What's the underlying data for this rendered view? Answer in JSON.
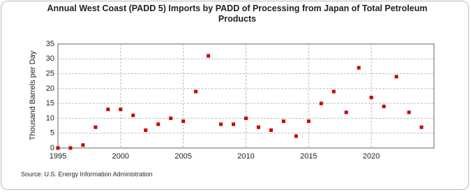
{
  "chart_data": {
    "type": "scatter",
    "title": "Annual West Coast (PADD 5) Imports by PADD of Processing from Japan of Total Petroleum Products",
    "y_label": "Thousand Barrels per Day",
    "source": "Source: U.S. Energy Information Administration",
    "x": [
      1995,
      1996,
      1997,
      1998,
      1999,
      2000,
      2001,
      2002,
      2003,
      2004,
      2005,
      2006,
      2007,
      2008,
      2009,
      2010,
      2011,
      2012,
      2013,
      2014,
      2015,
      2016,
      2017,
      2018,
      2019,
      2020,
      2021,
      2022,
      2023,
      2024
    ],
    "values": [
      0,
      0,
      1,
      7,
      13,
      13,
      11,
      6,
      8,
      10,
      9,
      19,
      31,
      8,
      8,
      10,
      7,
      6,
      9,
      4,
      9,
      15,
      19,
      12,
      27,
      17,
      14,
      24,
      12,
      7
    ],
    "color": "#cc0000",
    "xlim": [
      1995,
      2025
    ],
    "xticks": [
      1995,
      2000,
      2005,
      2010,
      2015,
      2020
    ],
    "ylim": [
      0,
      35
    ],
    "yticks": [
      0,
      5,
      10,
      15,
      20,
      25,
      30,
      35
    ],
    "grid": true
  }
}
